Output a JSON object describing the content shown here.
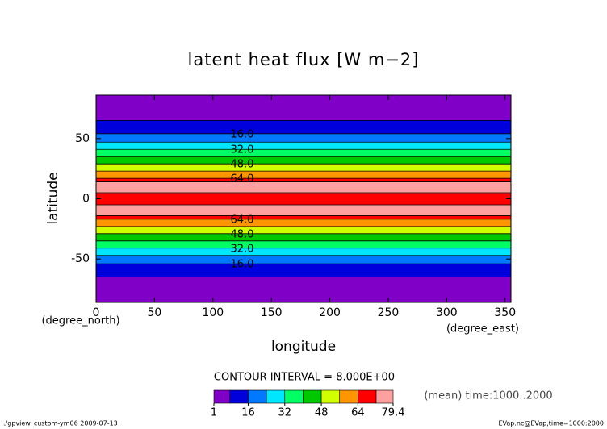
{
  "chart_data": {
    "type": "contour",
    "title": "latent heat flux [W m−2]",
    "ylabel": "latitude",
    "yunit": "(degree_north)",
    "xlabel": "longitude",
    "xunit": "(degree_east)",
    "contour_interval": "CONTOUR INTERVAL = 8.000E+00",
    "note": "(mean) time:1000..2000",
    "footer_left": "./gpview_custom-ym06  2009-07-13",
    "footer_right": "EVap.nc@EVap,time=1000:2000",
    "xlim": [
      0,
      355
    ],
    "xticks": [
      0,
      50,
      100,
      150,
      200,
      250,
      300,
      350
    ],
    "ylim": [
      -86,
      86
    ],
    "yticks": [
      -50,
      0,
      50
    ],
    "latitude": [
      86,
      70,
      65,
      60,
      54,
      47,
      41,
      35,
      29,
      23,
      17,
      14,
      9,
      5,
      0,
      -5,
      -9,
      -14,
      -17,
      -23,
      -29,
      -35,
      -41,
      -47,
      -54,
      -60,
      -65,
      -70,
      -86
    ],
    "values": [
      1,
      6,
      8,
      12,
      16,
      24,
      32,
      40,
      48,
      56,
      64,
      72,
      79.4,
      72,
      70,
      72,
      79.4,
      72,
      64,
      56,
      48,
      40,
      32,
      24,
      16,
      12,
      8,
      6,
      1
    ],
    "levels": [
      1,
      8,
      16,
      24,
      32,
      40,
      48,
      56,
      64,
      72,
      79.4
    ],
    "colors": [
      "#8000c8",
      "#0000dc",
      "#0078ff",
      "#00e6ff",
      "#00ff64",
      "#00c800",
      "#d2ff00",
      "#ff9600",
      "#ff0000",
      "#ffa0a0"
    ],
    "contour_labels": [
      {
        "value": 16,
        "label": "16.0"
      },
      {
        "value": 32,
        "label": "32.0"
      },
      {
        "value": 48,
        "label": "48.0"
      },
      {
        "value": 64,
        "label": "64.0"
      }
    ],
    "colorbar_ticks": [
      1,
      16,
      32,
      48,
      64,
      79.4
    ]
  }
}
